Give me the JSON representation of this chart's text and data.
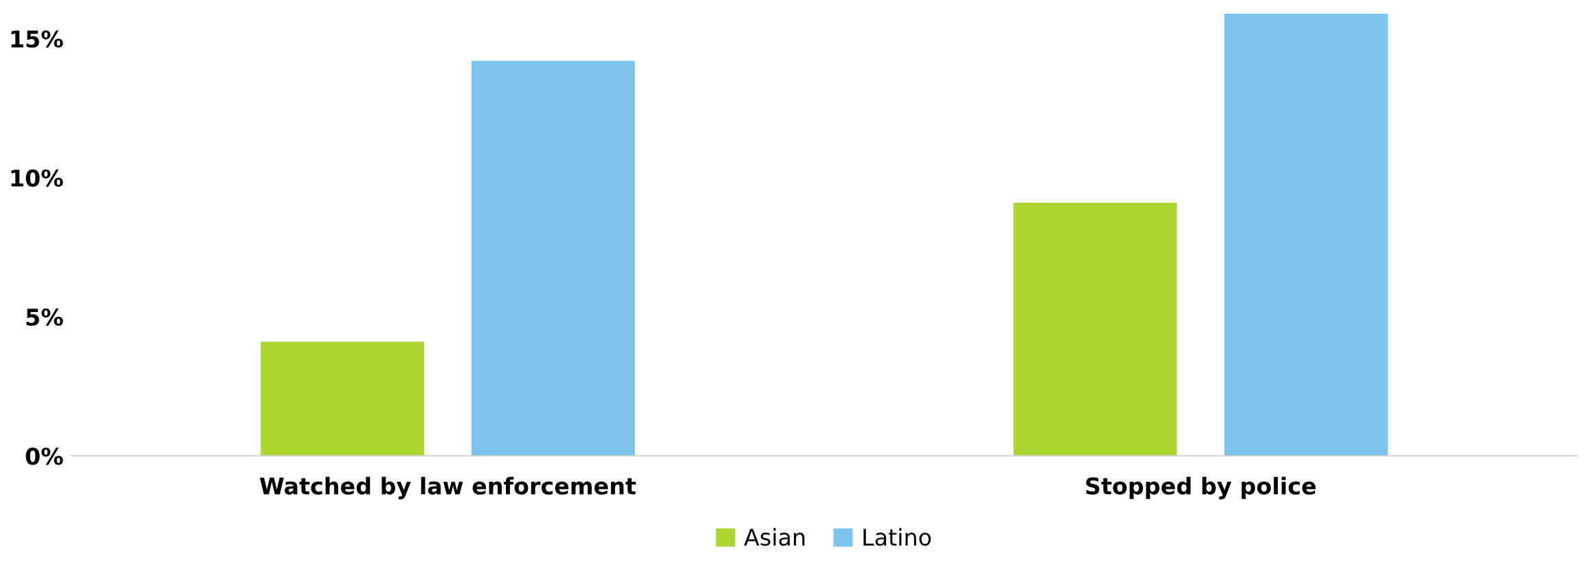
{
  "chart_data": {
    "type": "bar",
    "categories": [
      "Watched by law enforcement",
      "Stopped by police"
    ],
    "series": [
      {
        "name": "Asian",
        "color": "#add633",
        "values": [
          4.1,
          9.1
        ]
      },
      {
        "name": "Latino",
        "color": "#7cc4ee",
        "values": [
          14.2,
          15.9
        ]
      }
    ],
    "ylim": [
      0,
      15.9
    ],
    "yticks": [
      {
        "value": 0,
        "label": "0%"
      },
      {
        "value": 5,
        "label": "5%"
      },
      {
        "value": 10,
        "label": "10%"
      },
      {
        "value": 15,
        "label": "15%"
      }
    ],
    "grid": false,
    "legend": "bottom"
  }
}
